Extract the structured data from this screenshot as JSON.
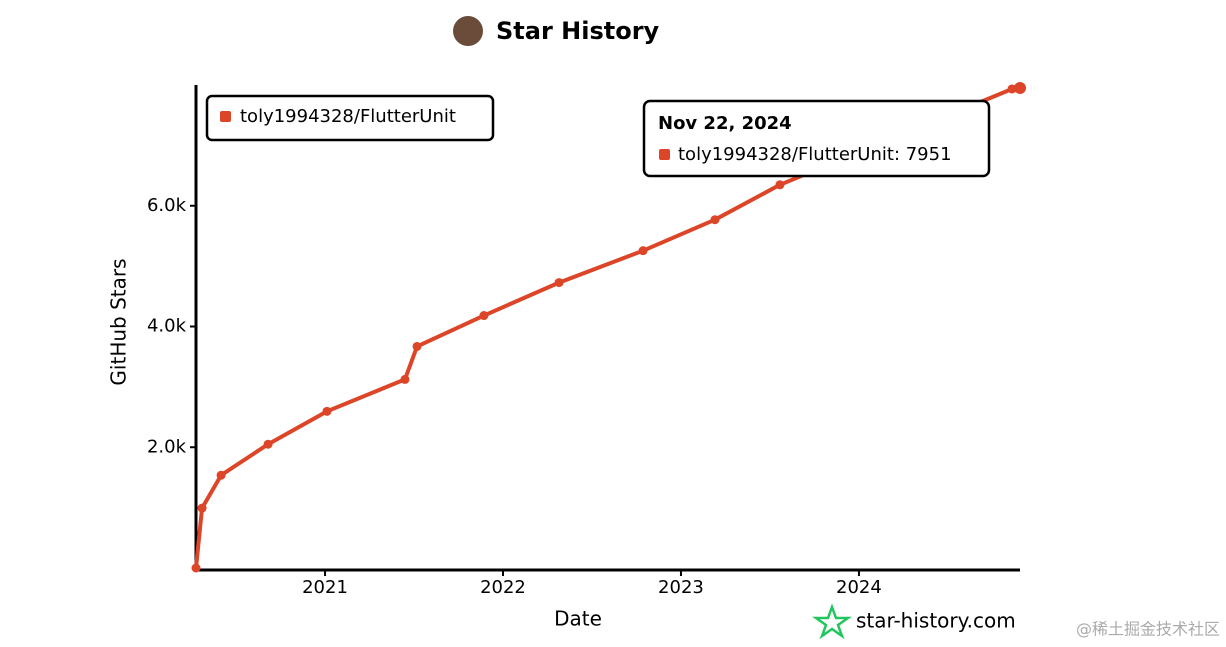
{
  "chart_data": {
    "type": "line",
    "title": "Star History",
    "x_label": "Date",
    "y_label": "GitHub Stars",
    "x": [
      2020.275,
      2020.309,
      2020.416,
      2020.68,
      2021.011,
      2021.449,
      2021.517,
      2021.893,
      2022.315,
      2022.787,
      2023.191,
      2023.556,
      2024.86,
      2024.905
    ],
    "series": [
      {
        "name": "toly1994328/FlutterUnit",
        "color": "#dd4528",
        "values": [
          0,
          992,
          1537,
          2050,
          2595,
          3124,
          3669,
          4182,
          4727,
          5256,
          5769,
          6347,
          7934,
          7951
        ]
      }
    ],
    "xlim": [
      2020.275,
      2024.905
    ],
    "xticks": [
      2021,
      2022,
      2023,
      2024
    ],
    "ylim": [
      0,
      8000
    ],
    "yticks": [
      {
        "value": 2000,
        "label": "2.0k"
      },
      {
        "value": 4000,
        "label": "4.0k"
      },
      {
        "value": 6000,
        "label": "6.0k"
      }
    ],
    "legend": "top-left",
    "tooltip": {
      "title": "Nov 22, 2024",
      "label": "toly1994328/FlutterUnit: 7951"
    },
    "watermark": "star-history.com",
    "credit": "@稀土掘金技术社区"
  }
}
